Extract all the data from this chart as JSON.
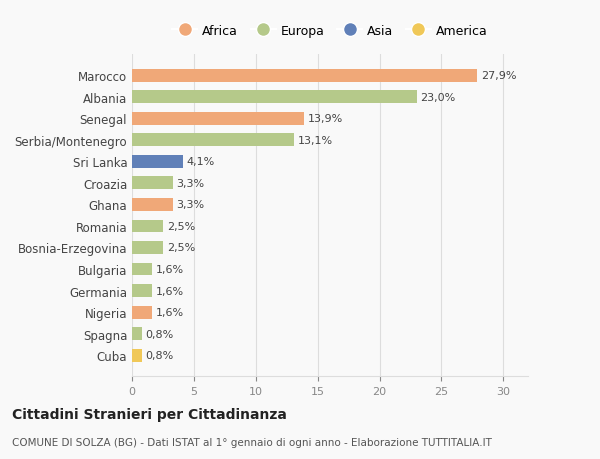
{
  "countries": [
    "Marocco",
    "Albania",
    "Senegal",
    "Serbia/Montenegro",
    "Sri Lanka",
    "Croazia",
    "Ghana",
    "Romania",
    "Bosnia-Erzegovina",
    "Bulgaria",
    "Germania",
    "Nigeria",
    "Spagna",
    "Cuba"
  ],
  "values": [
    27.9,
    23.0,
    13.9,
    13.1,
    4.1,
    3.3,
    3.3,
    2.5,
    2.5,
    1.6,
    1.6,
    1.6,
    0.8,
    0.8
  ],
  "labels": [
    "27,9%",
    "23,0%",
    "13,9%",
    "13,1%",
    "4,1%",
    "3,3%",
    "3,3%",
    "2,5%",
    "2,5%",
    "1,6%",
    "1,6%",
    "1,6%",
    "0,8%",
    "0,8%"
  ],
  "continents": [
    "Africa",
    "Europa",
    "Africa",
    "Europa",
    "Asia",
    "Europa",
    "Africa",
    "Europa",
    "Europa",
    "Europa",
    "Europa",
    "Africa",
    "Europa",
    "America"
  ],
  "continent_colors": {
    "Africa": "#F0A878",
    "Europa": "#B5C98A",
    "Asia": "#6080B8",
    "America": "#F0C858"
  },
  "legend_order": [
    "Africa",
    "Europa",
    "Asia",
    "America"
  ],
  "title": "Cittadini Stranieri per Cittadinanza",
  "subtitle": "COMUNE DI SOLZA (BG) - Dati ISTAT al 1° gennaio di ogni anno - Elaborazione TUTTITALIA.IT",
  "xlim": [
    0,
    32
  ],
  "xticks": [
    0,
    5,
    10,
    15,
    20,
    25,
    30
  ],
  "background_color": "#f9f9f9",
  "grid_color": "#dddddd"
}
